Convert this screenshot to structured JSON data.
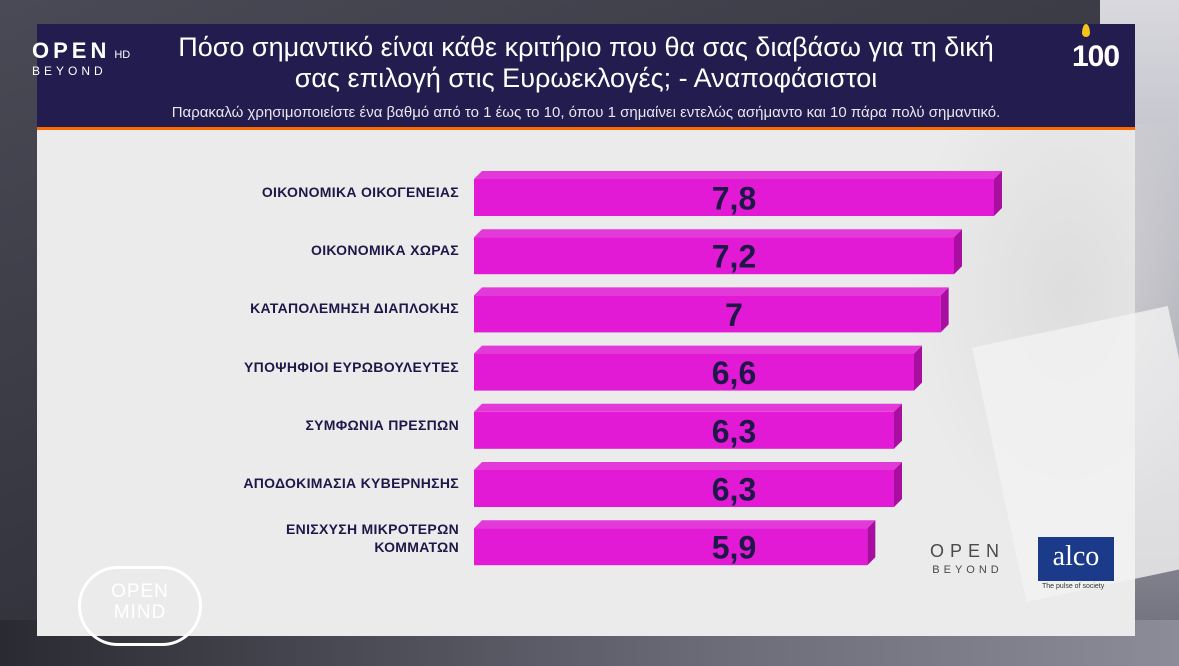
{
  "header": {
    "title_line1": "Πόσο σημαντικό είναι κάθε κριτήριο που θα σας διαβάσω για τη δική",
    "title_line2": "σας επιλογή στις Ευρωεκλογές; - Αναποφάσιστοι",
    "subtitle": "Παρακαλώ χρησιμοποιείστε ένα βαθμό από το 1 έως το 10, όπου 1 σημαίνει εντελώς ασήμαντο και 10 πάρα πολύ σημαντικό."
  },
  "logos": {
    "channel_main": "OPEN",
    "channel_hd": "HD",
    "channel_sub": "BEYOND",
    "anniversary": "100",
    "open_beyond_main": "OPEN",
    "open_beyond_sub": "BEYOND",
    "alco": "alco",
    "alco_tagline": "The pulse of society",
    "open_mind_l1": "OPEN",
    "open_mind_l2": "MIND"
  },
  "colors": {
    "bar": "#e21ad5",
    "bar_side": "#a80fa0",
    "value_text": "#1d1848",
    "header_bg": "#231c4e",
    "accent_rule": "#ff6a00"
  },
  "chart_data": {
    "type": "bar",
    "orientation": "horizontal",
    "categories": [
      "ΟΙΚΟΝΟΜΙΚΑ ΟΙΚΟΓΕΝΕΙΑΣ",
      "ΟΙΚΟΝΟΜΙΚΑ ΧΩΡΑΣ",
      "ΚΑΤΑΠΟΛΕΜΗΣΗ ΔΙΑΠΛΟΚΗΣ",
      "ΥΠΟΨΗΦΙΟΙ ΕΥΡΩΒΟΥΛΕΥΤΕΣ",
      "ΣΥΜΦΩΝΙΑ ΠΡΕΣΠΩΝ",
      "ΑΠΟΔΟΚΙΜΑΣΙΑ ΚΥΒΕΡΝΗΣΗΣ",
      "ΕΝΙΣΧΥΣΗ ΜΙΚΡΟΤΕΡΩΝ ΚΟΜΜΑΤΩΝ"
    ],
    "values": [
      7.8,
      7.2,
      7,
      6.6,
      6.3,
      6.3,
      5.9
    ],
    "value_labels": [
      "7,8",
      "7,2",
      "7",
      "6,6",
      "6,3",
      "6,3",
      "5,9"
    ],
    "xlim": [
      0,
      8
    ]
  }
}
